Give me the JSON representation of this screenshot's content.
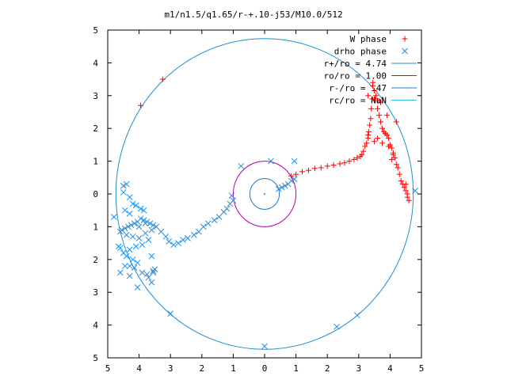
{
  "chart_data": {
    "type": "scatter",
    "title": "m1/n1.5/q1.65/r-+.10-j53/M10.0/512",
    "xlabel": "",
    "ylabel": "",
    "xlim": [
      -5,
      5
    ],
    "ylim": [
      -5,
      5
    ],
    "x_ticks": [
      -5,
      -4,
      -3,
      -2,
      -1,
      0,
      1,
      2,
      3,
      4,
      5
    ],
    "y_ticks": [
      -5,
      -4,
      -3,
      -2,
      -1,
      0,
      1,
      2,
      3,
      4,
      5
    ],
    "x_tick_labels": [
      "5",
      "4",
      "3",
      "2",
      "1",
      "0",
      "1",
      "2",
      "3",
      "4",
      "5"
    ],
    "y_tick_labels": [
      "5",
      "4",
      "3",
      "2",
      "1",
      "0",
      "1",
      "2",
      "3",
      "4",
      "5"
    ],
    "grid": false,
    "legend_position": "top-right",
    "series": [
      {
        "name": "W phase",
        "marker": "+",
        "color": "#ff0000",
        "x": [
          0.85,
          1.0,
          1.2,
          1.4,
          1.6,
          1.8,
          2.0,
          2.2,
          2.4,
          2.55,
          2.7,
          2.85,
          2.95,
          3.05,
          3.1,
          3.15,
          3.2,
          3.25,
          3.3,
          3.32,
          3.35,
          3.38,
          3.4,
          3.43,
          3.45,
          3.5,
          3.55,
          3.6,
          3.6,
          3.65,
          3.7,
          3.75,
          3.8,
          3.85,
          3.9,
          3.95,
          4.0,
          4.05,
          4.1,
          4.15,
          4.2,
          4.25,
          4.3,
          4.35,
          4.4,
          4.45,
          4.5,
          4.55,
          4.6,
          4.5,
          4.55,
          3.3,
          3.45,
          3.5,
          3.7,
          3.9,
          4.2,
          3.3,
          3.5,
          3.6,
          3.75,
          3.95,
          4.1,
          4.05,
          -3.25,
          -3.95
        ],
        "y": [
          0.55,
          0.6,
          0.68,
          0.72,
          0.78,
          0.8,
          0.85,
          0.88,
          0.92,
          0.95,
          1.0,
          1.05,
          1.1,
          1.15,
          1.2,
          1.3,
          1.45,
          1.55,
          1.7,
          1.9,
          2.1,
          2.3,
          2.6,
          2.9,
          3.3,
          3.15,
          3.0,
          2.85,
          2.6,
          2.4,
          2.2,
          2.0,
          1.9,
          1.85,
          1.8,
          1.7,
          1.5,
          1.4,
          1.2,
          1.1,
          0.9,
          0.8,
          0.6,
          0.4,
          0.3,
          0.2,
          0.1,
          0.0,
          -0.2,
          0.3,
          -0.1,
          3.0,
          3.4,
          2.9,
          2.8,
          2.4,
          2.2,
          1.8,
          1.6,
          1.7,
          1.55,
          1.45,
          1.25,
          1.05,
          3.5,
          2.7
        ]
      },
      {
        "name": "drho phase",
        "marker": "x",
        "color": "#1e8fe6",
        "x": [
          0.45,
          0.55,
          0.65,
          0.75,
          0.85,
          0.95,
          -1.0,
          -1.1,
          -1.2,
          -1.3,
          -1.45,
          -1.6,
          -1.8,
          -1.95,
          -2.1,
          -2.25,
          -2.45,
          -2.6,
          -2.75,
          -2.9,
          -3.05,
          -3.15,
          -3.3,
          -3.45,
          -3.55,
          -3.65,
          -3.75,
          -3.85,
          -3.95,
          -4.05,
          -4.15,
          -4.25,
          -4.35,
          -4.45,
          -4.55,
          -4.6,
          -4.4,
          -4.2,
          -4.0,
          -3.8,
          -3.6,
          -3.9,
          -4.1,
          -4.3,
          -4.0,
          -3.8,
          -3.7,
          -3.6,
          -4.2,
          -4.45,
          -4.6,
          -4.65,
          -4.5,
          -4.45,
          -4.3,
          -4.8,
          -3.55,
          -3.0,
          -4.05,
          -3.75,
          -4.05,
          -4.4,
          -4.6,
          -4.3,
          -3.6,
          -3.7,
          -3.9,
          -4.15,
          -4.3,
          -3.55,
          -3.5,
          -4.5,
          -4.5,
          -4.4,
          -4.3,
          -4.2,
          -4.1,
          -3.95,
          -3.85,
          0.95,
          0.2,
          -0.75,
          -1.05,
          0.0,
          2.3,
          2.95,
          4.8
        ],
        "y": [
          0.15,
          0.2,
          0.25,
          0.3,
          0.4,
          0.45,
          -0.2,
          -0.3,
          -0.45,
          -0.55,
          -0.7,
          -0.8,
          -0.9,
          -1.0,
          -1.15,
          -1.25,
          -1.35,
          -1.4,
          -1.5,
          -1.55,
          -1.45,
          -1.3,
          -1.15,
          -1.0,
          -0.95,
          -0.9,
          -0.85,
          -0.8,
          -0.75,
          -0.85,
          -0.9,
          -0.95,
          -1.0,
          -1.05,
          -1.1,
          -1.15,
          -1.25,
          -1.3,
          -1.35,
          -1.2,
          -1.1,
          -1.55,
          -1.6,
          -1.7,
          -1.0,
          -0.9,
          -1.4,
          -1.9,
          -2.0,
          -2.2,
          -2.4,
          -1.6,
          -1.8,
          -0.5,
          -0.6,
          -0.7,
          -2.35,
          -3.65,
          -2.1,
          -2.45,
          -2.85,
          -1.9,
          -1.65,
          -2.5,
          -2.7,
          -2.55,
          -2.4,
          -2.25,
          -2.2,
          -2.4,
          -2.3,
          0.05,
          0.25,
          0.3,
          -0.1,
          -0.3,
          -0.35,
          -0.45,
          -0.5,
          1.0,
          1.0,
          0.85,
          -0.05,
          -4.65,
          -4.05,
          -3.7,
          0.1
        ]
      }
    ],
    "circles": [
      {
        "name": "r+/ro = 4.74",
        "radius": 4.74,
        "color": "#1e8fd0"
      },
      {
        "name": "ro/ro = 1.00",
        "radius": 1.0,
        "color": "#b400b4"
      },
      {
        "name": "r-/ro = .47",
        "radius": 0.47,
        "color": "#1e78c8"
      },
      {
        "name": "rc/ro = NaN",
        "radius": null,
        "color": "#30c8d8"
      }
    ]
  }
}
